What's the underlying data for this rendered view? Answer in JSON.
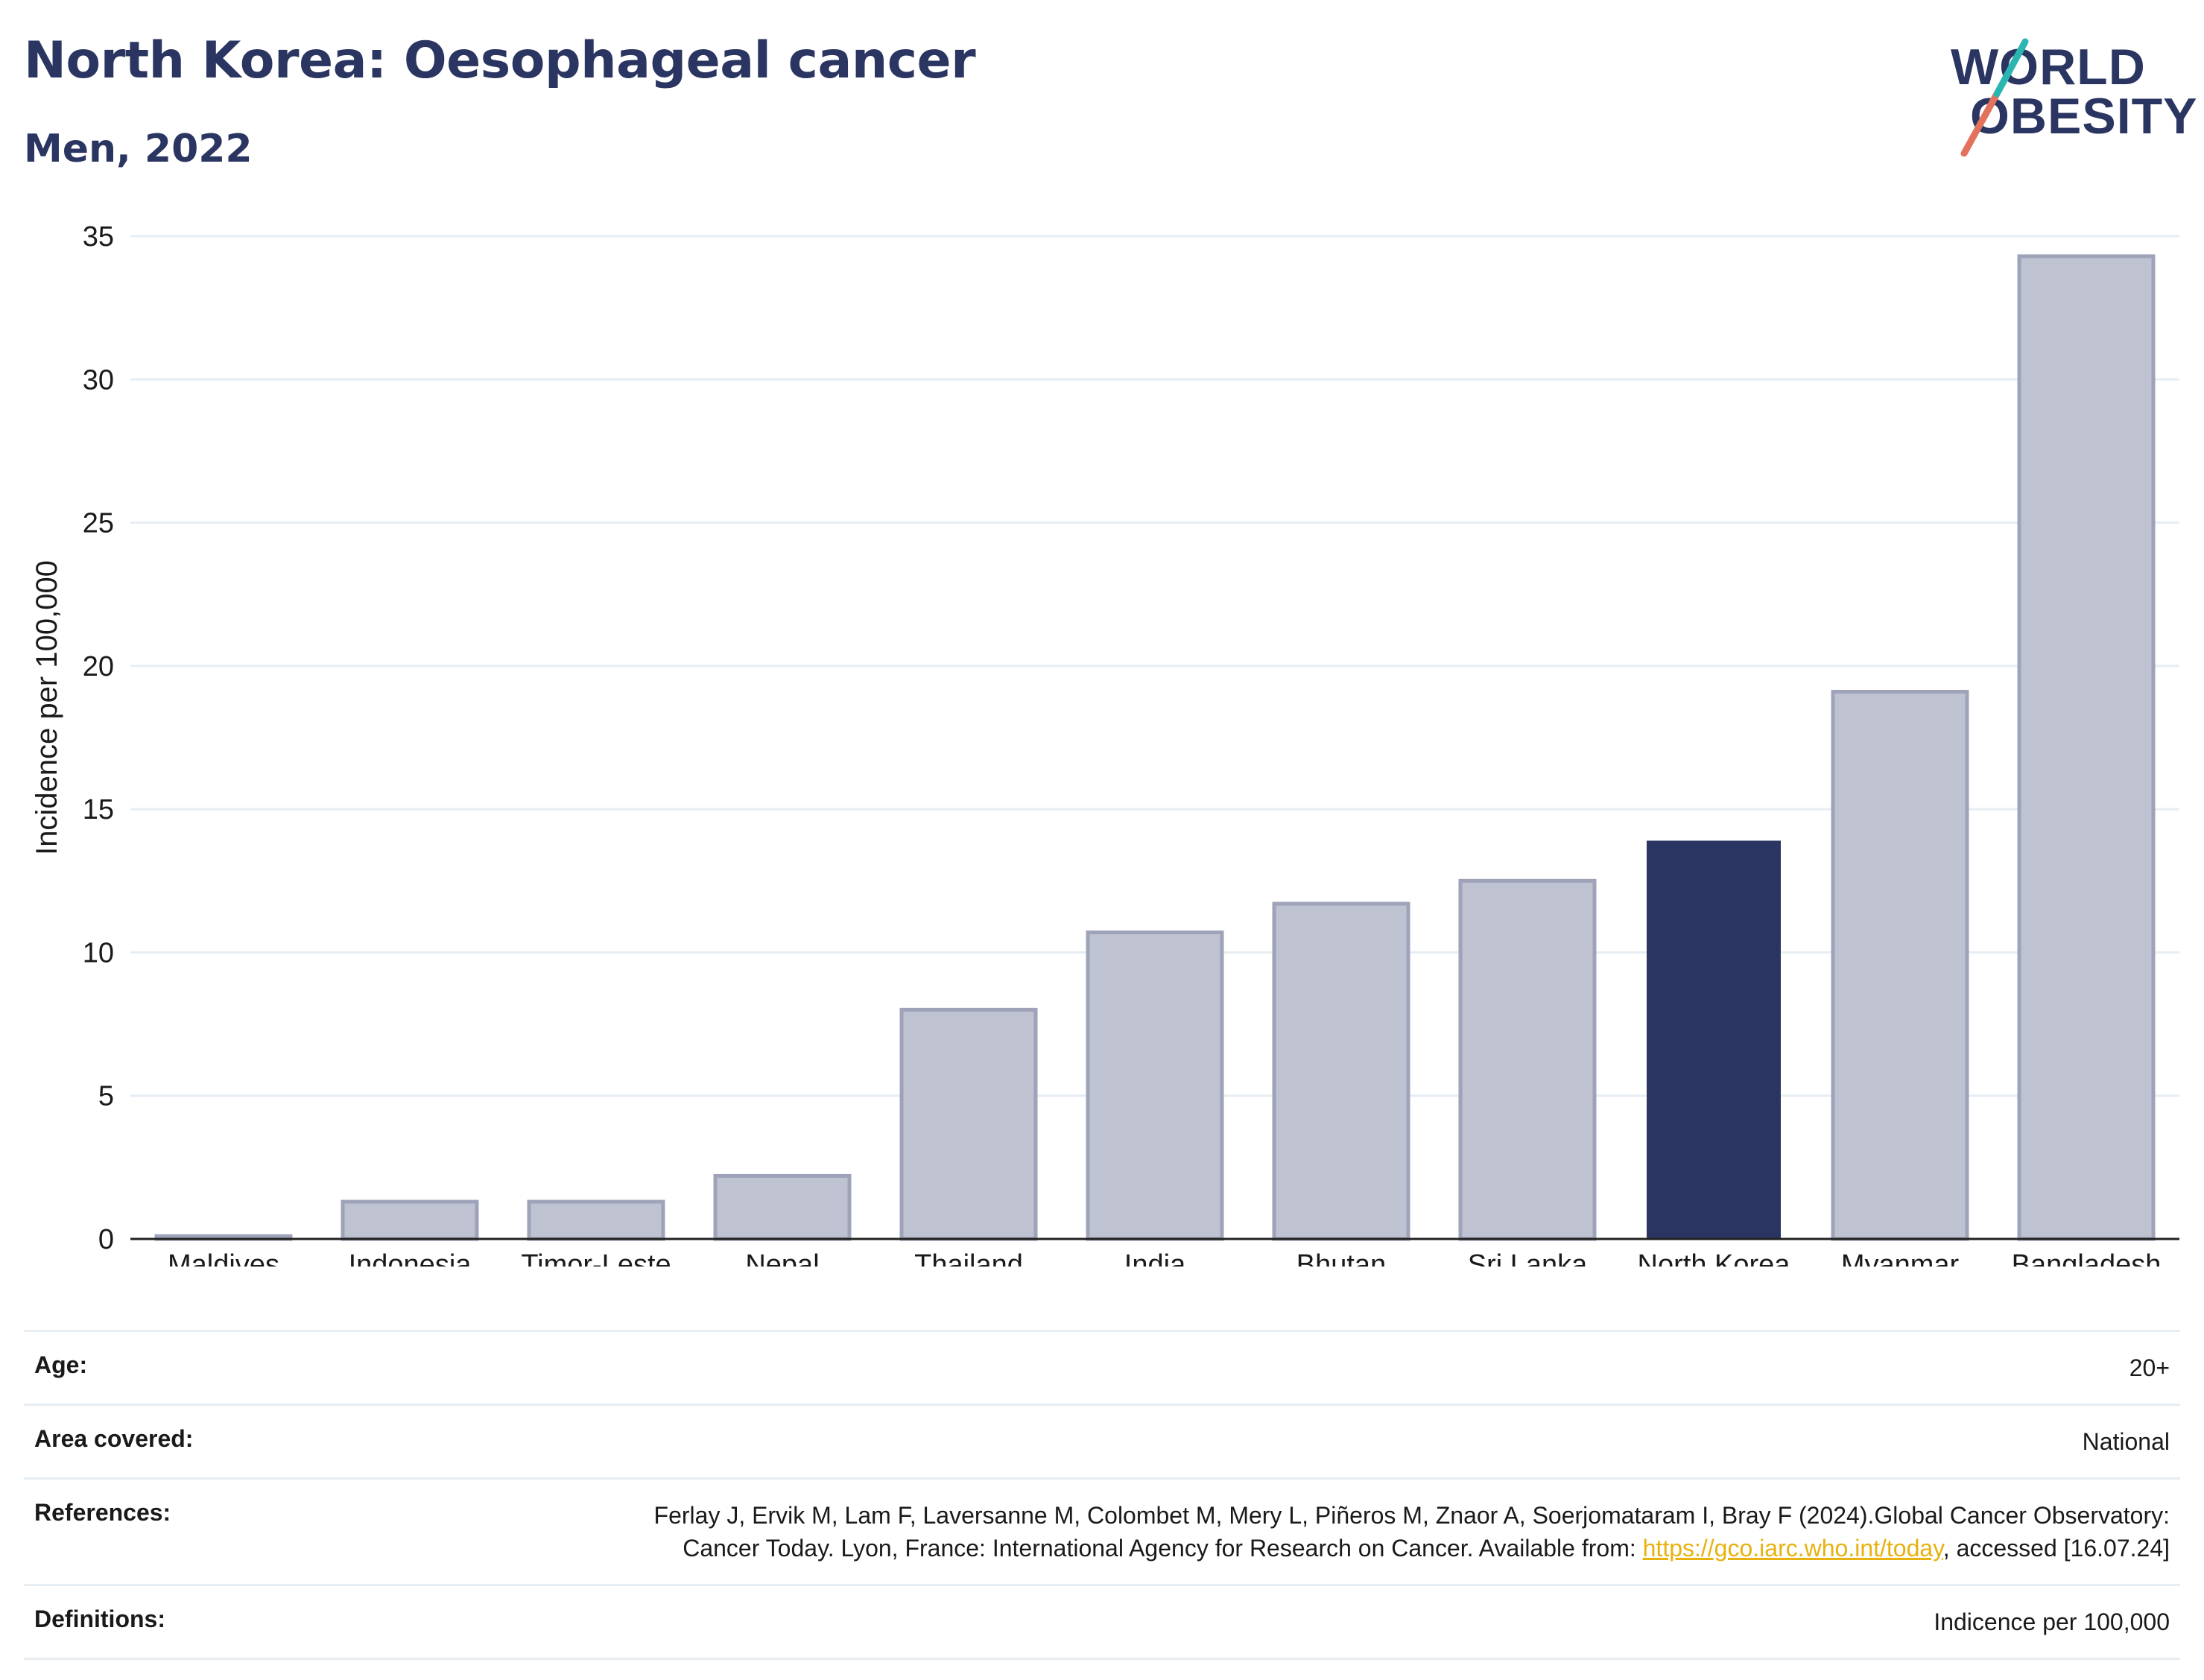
{
  "title": "North Korea: Oesophageal cancer",
  "subtitle": "Men, 2022",
  "logo": {
    "line1": "WORLD",
    "line2": "OBESITY"
  },
  "colors": {
    "highlight": "#2a3561",
    "bar": "#bfc2d0",
    "bar_edge": "#9ea3ba",
    "grid": "#e6edf3"
  },
  "chart_data": {
    "type": "bar",
    "title": "North Korea: Oesophageal cancer",
    "subtitle": "Men, 2022",
    "xlabel": "",
    "ylabel": "Incidence per 100,000",
    "ylim": [
      0,
      35
    ],
    "yticks": [
      0,
      5,
      10,
      15,
      20,
      25,
      30,
      35
    ],
    "categories": [
      "Maldives",
      "Indonesia",
      "Timor-Leste",
      "Nepal",
      "Thailand",
      "India",
      "Bhutan",
      "Sri Lanka",
      "North Korea",
      "Myanmar",
      "Bangladesh"
    ],
    "values": [
      0.1,
      1.3,
      1.3,
      2.2,
      8.0,
      10.7,
      11.7,
      12.5,
      13.9,
      19.1,
      34.3
    ],
    "highlight": "North Korea",
    "grid": true
  },
  "info": {
    "age_label": "Age:",
    "age_value": "20+",
    "area_label": "Area covered:",
    "area_value": "National",
    "references_label": "References:",
    "references_text_1": "Ferlay J, Ervik M, Lam F, Laversanne M, Colombet M, Mery L, Piñeros M, Znaor A, Soerjomataram I, Bray F (2024).Global Cancer Observatory: Cancer Today. Lyon, France: International Agency for Research on Cancer. Available from: ",
    "references_link": "https://gco.iarc.who.int/today",
    "references_text_2": ", accessed [16.07.24]",
    "definitions_label": "Definitions:",
    "definitions_value": "Indicence per 100,000"
  }
}
